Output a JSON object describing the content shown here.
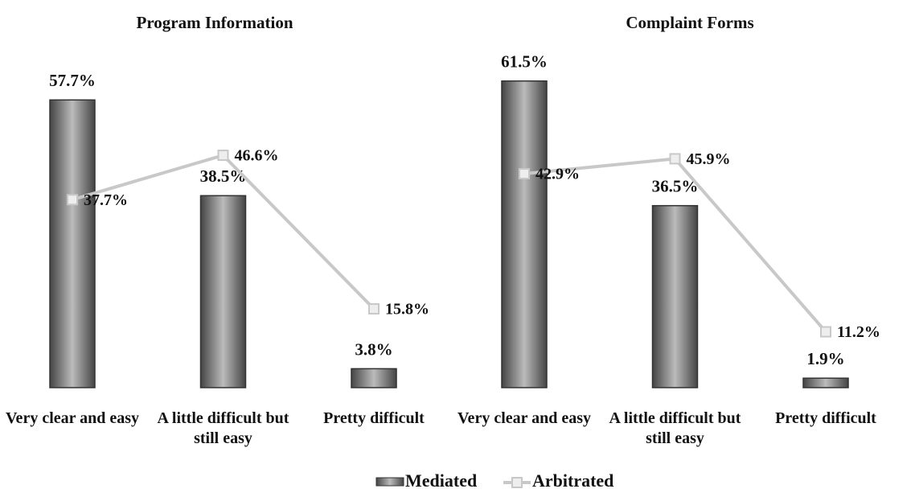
{
  "chart_data": [
    {
      "type": "bar",
      "title": "Program Information",
      "categories": [
        "Very clear and easy",
        "A little difficult but still easy",
        "Pretty difficult"
      ],
      "series": [
        {
          "name": "Mediated",
          "color": "#8c8c8c",
          "values": [
            57.7,
            38.5,
            3.8
          ],
          "value_labels": [
            "57.7%",
            "38.5%",
            "3.8%"
          ]
        },
        {
          "name": "Arbitrated",
          "color": "#c8c8c8",
          "type": "line",
          "values": [
            37.7,
            46.6,
            15.8
          ],
          "value_labels": [
            "37.7%",
            "46.6%",
            "15.8%"
          ]
        }
      ]
    },
    {
      "type": "bar",
      "title": "Complaint Forms",
      "categories": [
        "Very clear and easy",
        "A little difficult but still easy",
        "Pretty difficult"
      ],
      "series": [
        {
          "color": "#8c8c8c",
          "values": [
            61.5,
            36.5,
            1.9
          ],
          "value_labels": [
            "61.5%",
            "36.5%",
            "1.9%"
          ]
        },
        {
          "color": "#c8c8c8",
          "type": "line",
          "values": [
            42.9,
            45.9,
            11.2
          ],
          "value_labels": [
            "42.9%",
            "45.9%",
            "11.2%"
          ]
        }
      ]
    }
  ]
}
